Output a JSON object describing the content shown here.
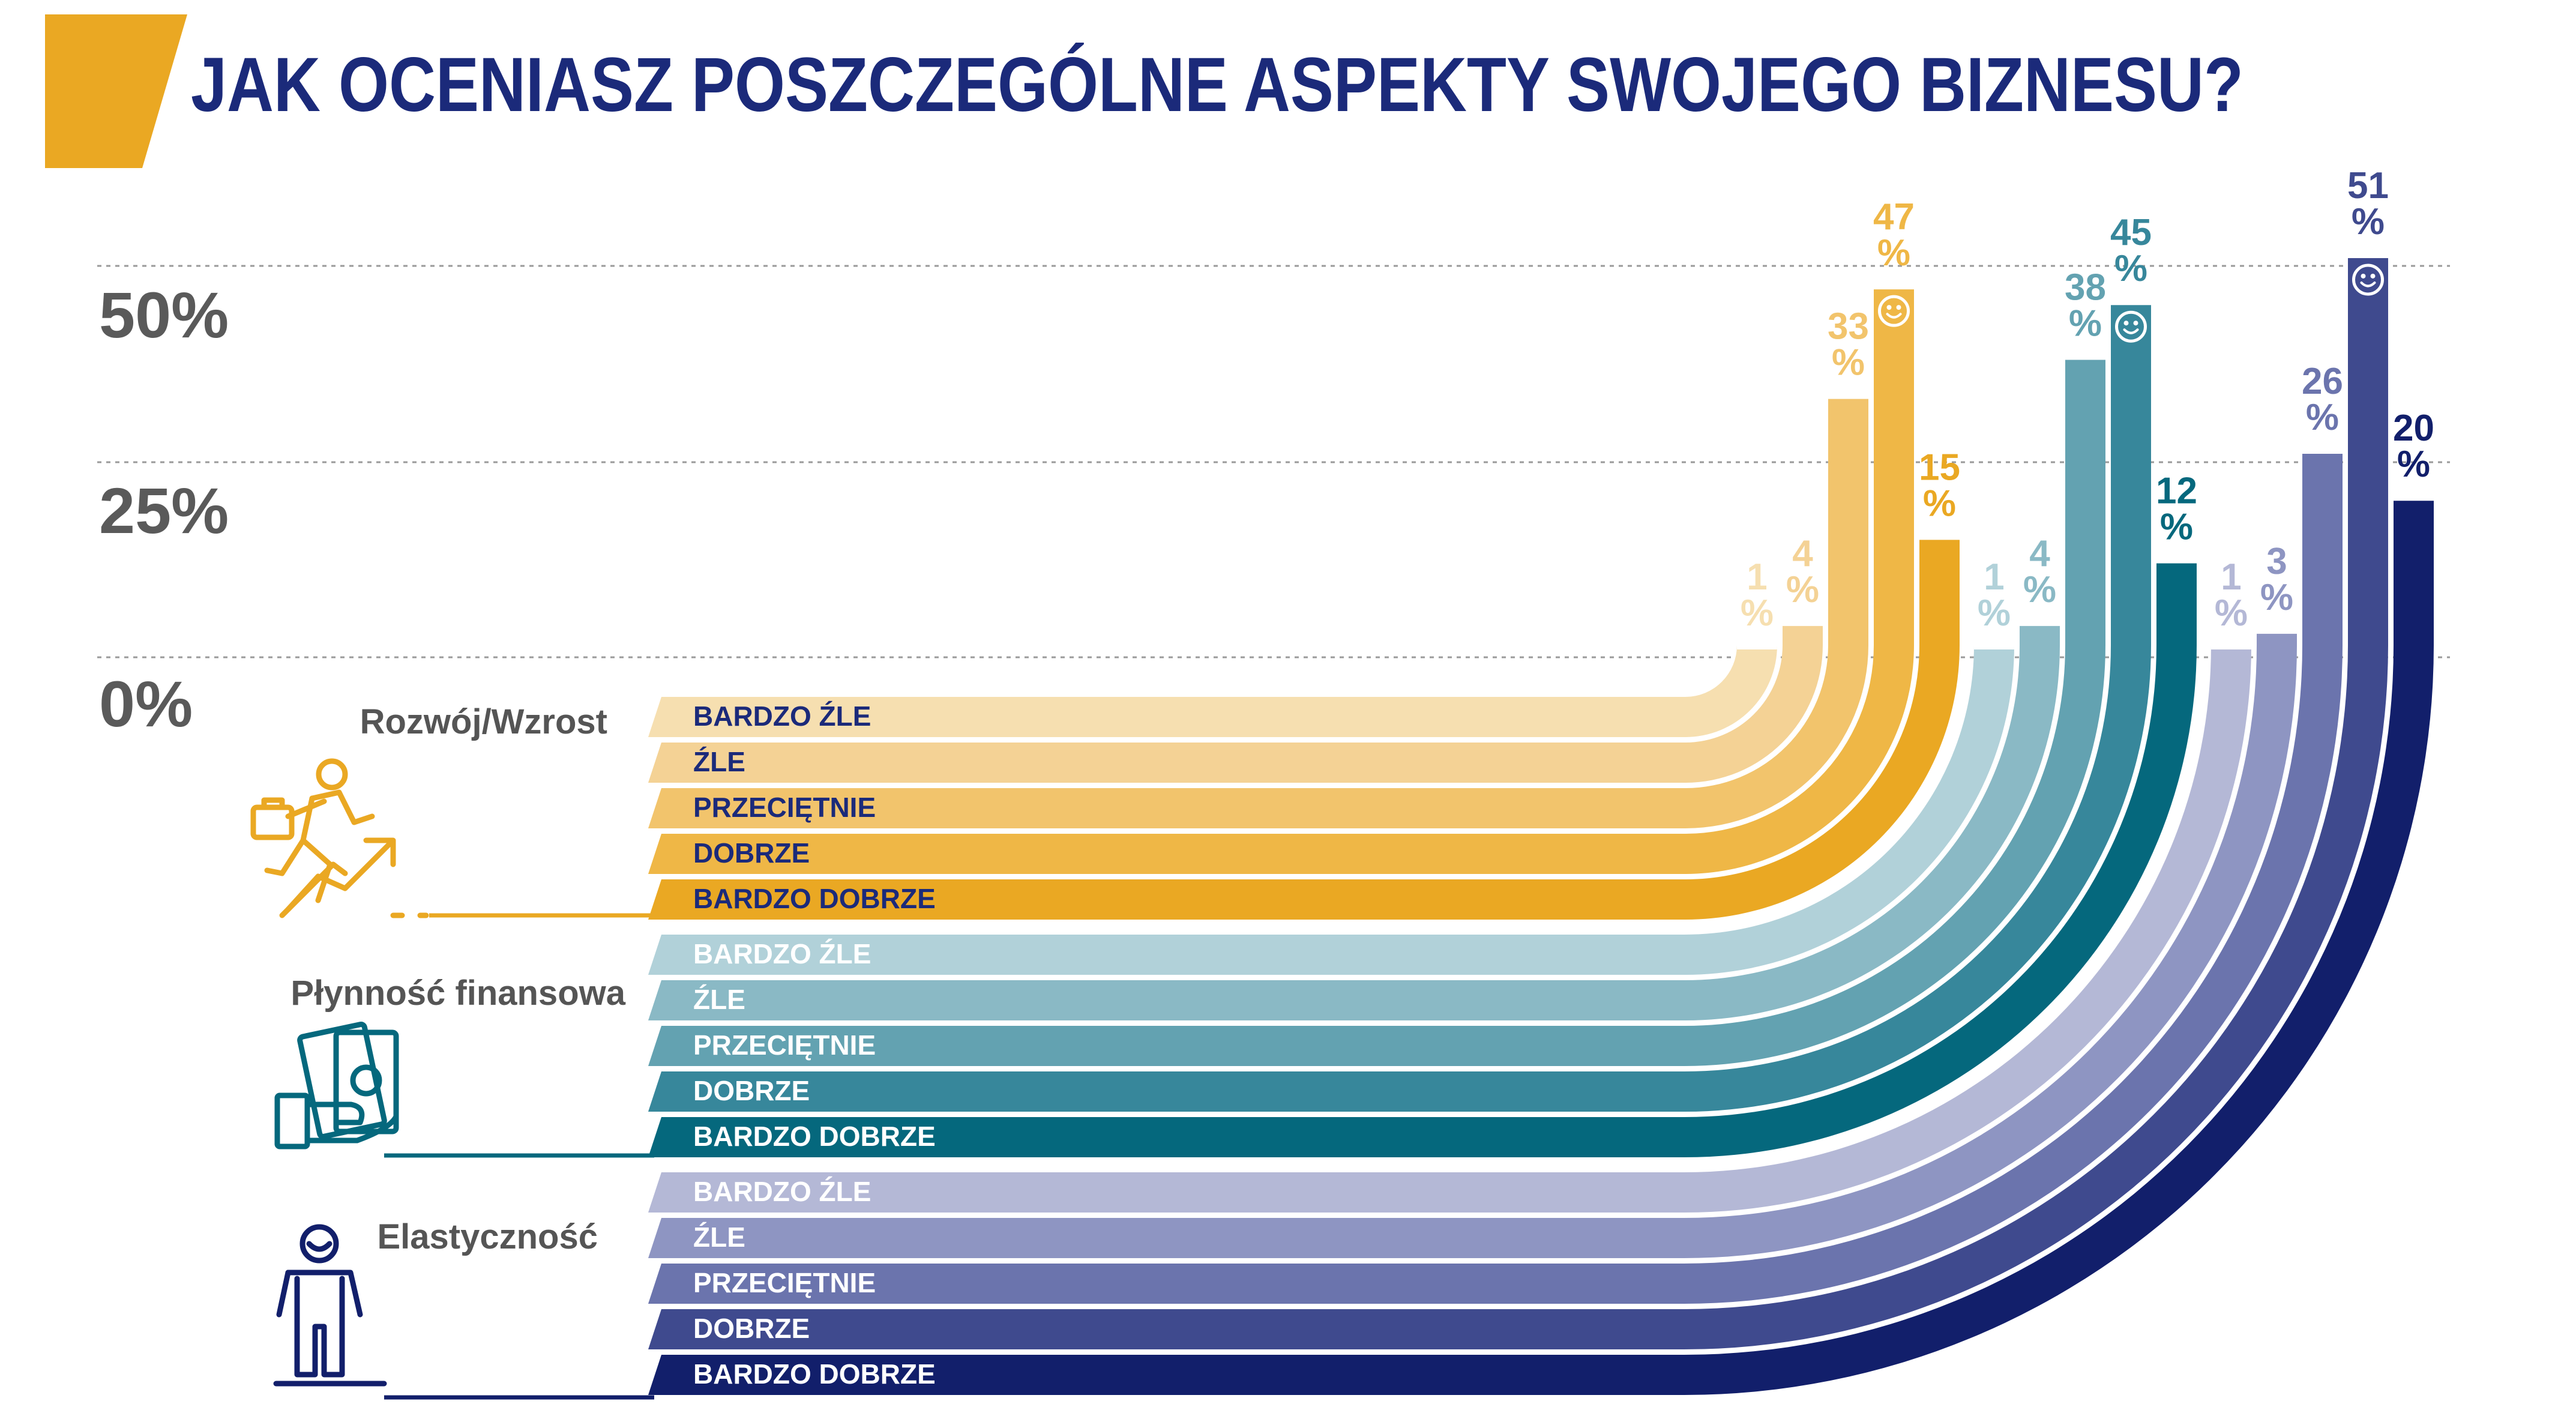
{
  "title": "JAK OCENIASZ POSZCZEGÓLNE ASPEKTY SWOJEGO BIZNESU?",
  "y_ticks": [
    "50%",
    "25%",
    "0%"
  ],
  "colors": {
    "title": "#1b2a7a",
    "accent": "#eaa823",
    "axis_text": "#5a5a5a",
    "aspect_label": "#555555",
    "grid": "#9a9a9a"
  },
  "chart_data": {
    "type": "bar",
    "title": "JAK OCENIASZ POSZCZEGÓLNE ASPEKTY SWOJEGO BIZNESU?",
    "categories": [
      "BARDZO ŹLE",
      "ŹLE",
      "PRZECIĘTNIE",
      "DOBRZE",
      "BARDZO DOBRZE"
    ],
    "ylim": [
      0,
      50
    ],
    "y_ticks": [
      0,
      25,
      50
    ],
    "grid": true,
    "unit": "%",
    "series": [
      {
        "name": "Rozwój/Wzrost",
        "icon": "running-man-growth-icon",
        "values": [
          1,
          4,
          33,
          47,
          15
        ],
        "labels": [
          "1",
          "4",
          "33",
          "47",
          "15"
        ],
        "colors": [
          "#f6dfb0",
          "#f4d295",
          "#f2c46c",
          "#efb746",
          "#eaa823"
        ],
        "label_colors": [
          "#f6dfb0",
          "#f4d295",
          "#f2c46c",
          "#efb746",
          "#eaa823"
        ],
        "text_colors": [
          "#1b2a7a",
          "#1b2a7a",
          "#1b2a7a",
          "#1b2a7a",
          "#1b2a7a"
        ]
      },
      {
        "name": "Płynność finansowa",
        "icon": "hand-money-icon",
        "values": [
          1,
          4,
          38,
          45,
          12
        ],
        "labels": [
          "1",
          "4",
          "38",
          "45",
          "12"
        ],
        "colors": [
          "#b1d1d9",
          "#8ab9c5",
          "#63a2b1",
          "#37879b",
          "#05687d"
        ],
        "label_colors": [
          "#b1d1d9",
          "#8ab9c5",
          "#63a2b1",
          "#37879b",
          "#05687d"
        ],
        "text_colors": [
          "#ffffff",
          "#ffffff",
          "#ffffff",
          "#ffffff",
          "#ffffff"
        ]
      },
      {
        "name": "Elastyczność",
        "icon": "person-standing-icon",
        "values": [
          1,
          3,
          26,
          51,
          20
        ],
        "labels": [
          "1",
          "3",
          "26",
          "51",
          "20"
        ],
        "colors": [
          "#b4b8d6",
          "#8e95c2",
          "#6b74ad",
          "#3f4a8e",
          "#121f6b"
        ],
        "label_colors": [
          "#b4b8d6",
          "#8e95c2",
          "#6b74ad",
          "#3f4a8e",
          "#121f6b"
        ],
        "text_colors": [
          "#ffffff",
          "#ffffff",
          "#ffffff",
          "#ffffff",
          "#ffffff"
        ]
      }
    ]
  }
}
